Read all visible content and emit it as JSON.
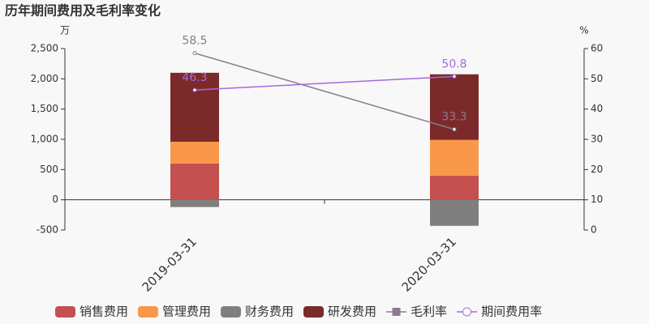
{
  "chart_data": {
    "type": "bar",
    "stacked": true,
    "title": "历年期间费用及毛利率变化",
    "y_label": "万",
    "y2_label": "%",
    "categories": [
      "2019-03-31",
      "2020-03-31"
    ],
    "ylim": [
      -500,
      2500
    ],
    "yticks": [
      -500,
      0,
      500,
      {
        "value": 1000,
        "label": "1,000"
      },
      {
        "value": 1500,
        "label": "1,500"
      },
      {
        "value": 2000,
        "label": "2,000"
      },
      {
        "value": 2500,
        "label": "2,500"
      }
    ],
    "y2lim": [
      0,
      60
    ],
    "y2ticks": [
      0,
      10,
      20,
      30,
      40,
      50,
      60
    ],
    "series": [
      {
        "name": "销售费用",
        "type": "bar",
        "color": "#c4504f",
        "values": [
          600,
          400
        ]
      },
      {
        "name": "管理费用",
        "type": "bar",
        "color": "#f9984a",
        "values": [
          360,
          590
        ]
      },
      {
        "name": "财务费用",
        "type": "bar",
        "color": "#7f7f7f",
        "values": [
          -120,
          -430
        ]
      },
      {
        "name": "研发费用",
        "type": "bar",
        "color": "#7b2a2a",
        "values": [
          1140,
          1085
        ]
      },
      {
        "name": "毛利率",
        "type": "line",
        "axis": "y2",
        "marker": "square",
        "color": "#8c7b8f",
        "values": [
          58.5,
          33.3
        ]
      },
      {
        "name": "期间费用率",
        "type": "line",
        "axis": "y2",
        "marker": "circle",
        "color": "#a569e0",
        "values": [
          46.3,
          50.8
        ]
      }
    ]
  }
}
